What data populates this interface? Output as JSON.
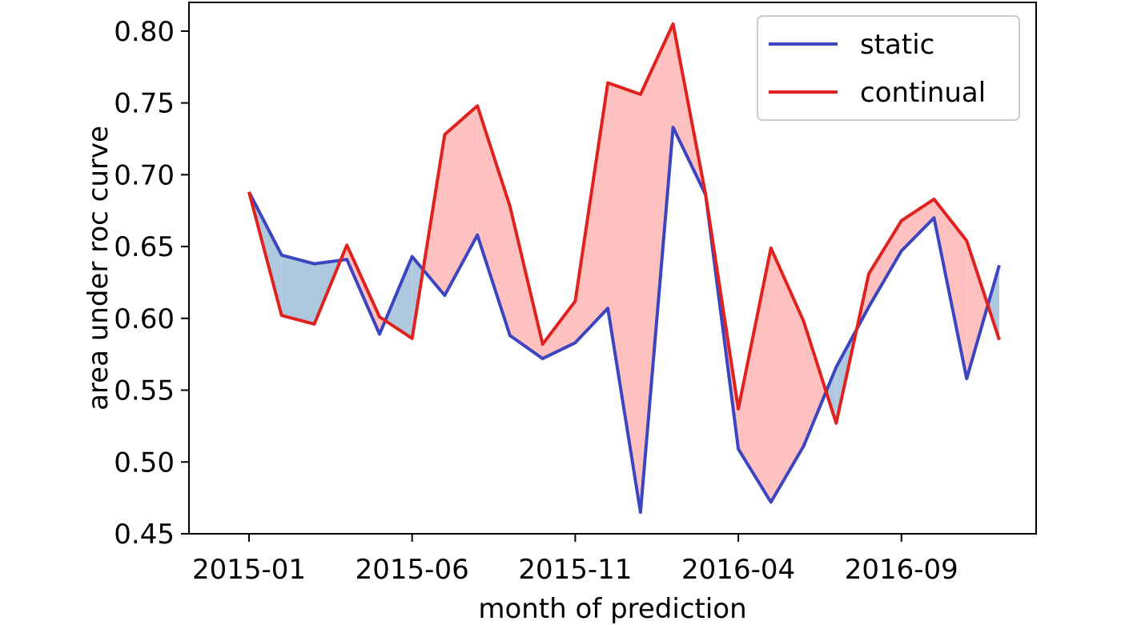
{
  "chart_data": {
    "type": "line",
    "xlabel": "month of prediction",
    "ylabel": "area under roc curve",
    "x": [
      "2015-01",
      "2015-02",
      "2015-03",
      "2015-04",
      "2015-05",
      "2015-06",
      "2015-07",
      "2015-08",
      "2015-09",
      "2015-10",
      "2015-11",
      "2015-12",
      "2016-01",
      "2016-02",
      "2016-03",
      "2016-04",
      "2016-05",
      "2016-06",
      "2016-07",
      "2016-08",
      "2016-09",
      "2016-10",
      "2016-11",
      "2016-12"
    ],
    "xticks": [
      "2015-01",
      "2015-06",
      "2015-11",
      "2016-04",
      "2016-09"
    ],
    "ylim": [
      0.45,
      0.82
    ],
    "yticks": [
      "0.45",
      "0.50",
      "0.55",
      "0.60",
      "0.65",
      "0.70",
      "0.75",
      "0.80"
    ],
    "grid": false,
    "legend": "top-right",
    "series": [
      {
        "name": "static",
        "color": "#3b45c0",
        "values": [
          0.688,
          0.644,
          0.638,
          0.641,
          0.589,
          0.643,
          0.616,
          0.658,
          0.588,
          0.572,
          0.583,
          0.607,
          0.465,
          0.733,
          0.686,
          0.509,
          0.472,
          0.511,
          0.566,
          0.608,
          0.647,
          0.67,
          0.558,
          0.637
        ]
      },
      {
        "name": "continual",
        "color": "#e0221f",
        "values": [
          0.688,
          0.602,
          0.596,
          0.651,
          0.601,
          0.586,
          0.728,
          0.748,
          0.678,
          0.582,
          0.612,
          0.764,
          0.756,
          0.805,
          0.686,
          0.537,
          0.649,
          0.598,
          0.527,
          0.631,
          0.668,
          0.683,
          0.654,
          0.585
        ]
      }
    ],
    "fill": {
      "static_above_color": "#aec9df",
      "continual_above_color": "#ffc0c0"
    }
  }
}
